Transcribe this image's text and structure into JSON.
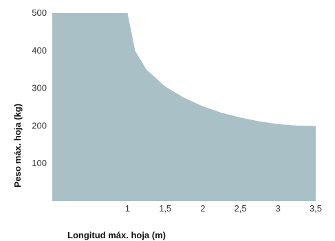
{
  "chart_data": {
    "type": "area",
    "xlabel": "Longitud máx. hoja (m)",
    "ylabel": "Peso máx. hoja (kg)",
    "xlim": [
      0,
      3.5
    ],
    "ylim": [
      0,
      500
    ],
    "x_ticks": [
      1,
      1.5,
      2,
      2.5,
      3,
      3.5
    ],
    "x_tick_labels": [
      "1",
      "1,5",
      "2",
      "2,5",
      "3",
      "3,5"
    ],
    "y_ticks": [
      100,
      200,
      300,
      400,
      500
    ],
    "y_tick_labels": [
      "100",
      "200",
      "300",
      "400",
      "500"
    ],
    "grid": false,
    "series": [
      {
        "x": [
          0,
          1,
          1.1,
          1.25,
          1.5,
          1.75,
          2,
          2.25,
          2.5,
          2.75,
          3,
          3.25,
          3.5
        ],
        "values": [
          500,
          500,
          400,
          350,
          305,
          275,
          252,
          235,
          222,
          212,
          205,
          201,
          200
        ],
        "color": "#a9c0c6"
      }
    ]
  }
}
